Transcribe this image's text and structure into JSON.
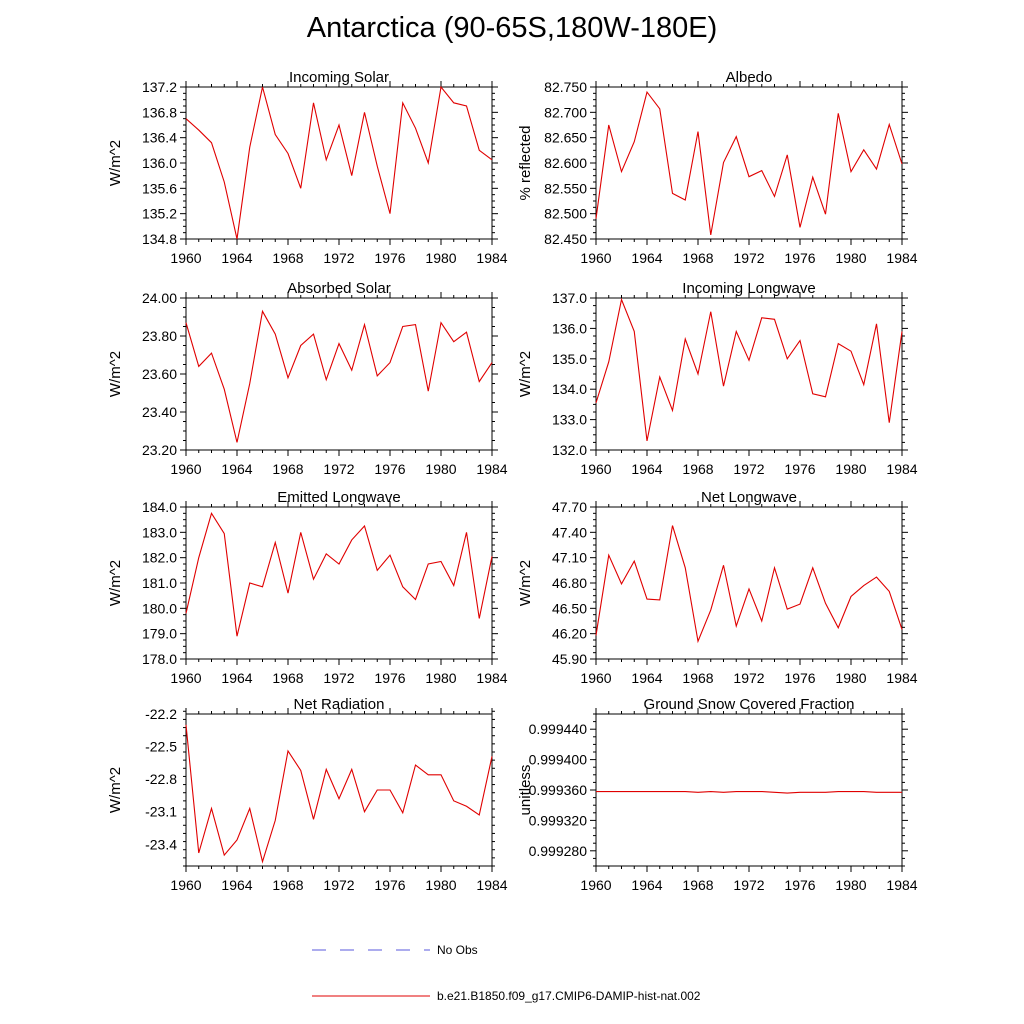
{
  "figure": {
    "title": "Antarctica (90-65S,180W-180E)"
  },
  "legend": {
    "entries": [
      {
        "label": "No Obs",
        "color": "#5a5adc",
        "style": "dashed"
      },
      {
        "label": "b.e21.B1850.f09_g17.CMIP6-DAMIP-hist-nat.002",
        "color": "#e00000",
        "style": "solid"
      }
    ]
  },
  "chart_data": [
    {
      "type": "line",
      "title": "Incoming Solar",
      "ylabel": "W/m^2",
      "xlim": [
        1960,
        1984
      ],
      "ylim": [
        134.8,
        137.2
      ],
      "yticks": [
        "134.8",
        "135.2",
        "135.6",
        "136.0",
        "136.4",
        "136.8",
        "137.2"
      ],
      "xticks": [
        "1960",
        "1964",
        "1968",
        "1972",
        "1976",
        "1980",
        "1984"
      ],
      "x": [
        1960,
        1961,
        1962,
        1963,
        1964,
        1965,
        1966,
        1967,
        1968,
        1969,
        1970,
        1971,
        1972,
        1973,
        1974,
        1975,
        1976,
        1977,
        1978,
        1979,
        1980,
        1981,
        1982,
        1983,
        1984
      ],
      "series": [
        {
          "name": "b.e21.B1850.f09_g17.CMIP6-DAMIP-hist-nat.002",
          "color": "#e00000",
          "values": [
            136.7,
            136.52,
            136.32,
            135.7,
            134.8,
            136.25,
            137.2,
            136.45,
            136.15,
            135.6,
            136.95,
            136.05,
            136.6,
            135.8,
            136.8,
            135.95,
            135.2,
            136.95,
            136.55,
            136.0,
            137.2,
            136.95,
            136.9,
            136.2,
            136.05
          ]
        }
      ]
    },
    {
      "type": "line",
      "title": "Albedo",
      "ylabel": "% reflected",
      "xlim": [
        1960,
        1984
      ],
      "ylim": [
        82.45,
        82.75
      ],
      "yticks": [
        "82.450",
        "82.500",
        "82.550",
        "82.600",
        "82.650",
        "82.700",
        "82.750"
      ],
      "xticks": [
        "1960",
        "1964",
        "1968",
        "1972",
        "1976",
        "1980",
        "1984"
      ],
      "x": [
        1960,
        1961,
        1962,
        1963,
        1964,
        1965,
        1966,
        1967,
        1968,
        1969,
        1970,
        1971,
        1972,
        1973,
        1974,
        1975,
        1976,
        1977,
        1978,
        1979,
        1980,
        1981,
        1982,
        1983,
        1984
      ],
      "series": [
        {
          "name": "b.e21.B1850.f09_g17.CMIP6-DAMIP-hist-nat.002",
          "color": "#e00000",
          "values": [
            82.49,
            82.675,
            82.583,
            82.642,
            82.74,
            82.707,
            82.54,
            82.527,
            82.662,
            82.458,
            82.601,
            82.652,
            82.573,
            82.585,
            82.534,
            82.616,
            82.473,
            82.572,
            82.499,
            82.698,
            82.583,
            82.626,
            82.588,
            82.676,
            82.598
          ]
        }
      ]
    },
    {
      "type": "line",
      "title": "Absorbed Solar",
      "ylabel": "W/m^2",
      "xlim": [
        1960,
        1984
      ],
      "ylim": [
        23.2,
        24.0
      ],
      "yticks": [
        "23.20",
        "23.40",
        "23.60",
        "23.80",
        "24.00"
      ],
      "xticks": [
        "1960",
        "1964",
        "1968",
        "1972",
        "1976",
        "1980",
        "1984"
      ],
      "x": [
        1960,
        1961,
        1962,
        1963,
        1964,
        1965,
        1966,
        1967,
        1968,
        1969,
        1970,
        1971,
        1972,
        1973,
        1974,
        1975,
        1976,
        1977,
        1978,
        1979,
        1980,
        1981,
        1982,
        1983,
        1984
      ],
      "series": [
        {
          "name": "b.e21.B1850.f09_g17.CMIP6-DAMIP-hist-nat.002",
          "color": "#e00000",
          "values": [
            23.87,
            23.64,
            23.71,
            23.52,
            23.24,
            23.55,
            23.93,
            23.81,
            23.58,
            23.75,
            23.81,
            23.57,
            23.76,
            23.62,
            23.86,
            23.59,
            23.66,
            23.85,
            23.86,
            23.51,
            23.87,
            23.77,
            23.82,
            23.56,
            23.66
          ]
        }
      ]
    },
    {
      "type": "line",
      "title": "Incoming Longwave",
      "ylabel": "W/m^2",
      "xlim": [
        1960,
        1984
      ],
      "ylim": [
        132.0,
        137.0
      ],
      "yticks": [
        "132.0",
        "133.0",
        "134.0",
        "135.0",
        "136.0",
        "137.0"
      ],
      "xticks": [
        "1960",
        "1964",
        "1968",
        "1972",
        "1976",
        "1980",
        "1984"
      ],
      "x": [
        1960,
        1961,
        1962,
        1963,
        1964,
        1965,
        1966,
        1967,
        1968,
        1969,
        1970,
        1971,
        1972,
        1973,
        1974,
        1975,
        1976,
        1977,
        1978,
        1979,
        1980,
        1981,
        1982,
        1983,
        1984
      ],
      "series": [
        {
          "name": "b.e21.B1850.f09_g17.CMIP6-DAMIP-hist-nat.002",
          "color": "#e00000",
          "values": [
            133.55,
            134.9,
            136.95,
            135.9,
            132.3,
            134.4,
            133.3,
            135.65,
            134.5,
            136.55,
            134.1,
            135.9,
            134.95,
            136.35,
            136.3,
            135.0,
            135.6,
            133.85,
            133.75,
            135.5,
            135.25,
            134.15,
            136.15,
            132.9,
            135.9
          ]
        }
      ]
    },
    {
      "type": "line",
      "title": "Emitted Longwave",
      "ylabel": "W/m^2",
      "xlim": [
        1960,
        1984
      ],
      "ylim": [
        178.0,
        184.0
      ],
      "yticks": [
        "178.0",
        "179.0",
        "180.0",
        "181.0",
        "182.0",
        "183.0",
        "184.0"
      ],
      "xticks": [
        "1960",
        "1964",
        "1968",
        "1972",
        "1976",
        "1980",
        "1984"
      ],
      "x": [
        1960,
        1961,
        1962,
        1963,
        1964,
        1965,
        1966,
        1967,
        1968,
        1969,
        1970,
        1971,
        1972,
        1973,
        1974,
        1975,
        1976,
        1977,
        1978,
        1979,
        1980,
        1981,
        1982,
        1983,
        1984
      ],
      "series": [
        {
          "name": "b.e21.B1850.f09_g17.CMIP6-DAMIP-hist-nat.002",
          "color": "#e00000",
          "values": [
            179.8,
            182.0,
            183.75,
            182.95,
            178.9,
            181.0,
            180.85,
            182.6,
            180.6,
            183.0,
            181.15,
            182.15,
            181.75,
            182.7,
            183.25,
            181.5,
            182.1,
            180.85,
            180.35,
            181.75,
            181.85,
            180.9,
            183.0,
            179.6,
            182.05
          ]
        }
      ]
    },
    {
      "type": "line",
      "title": "Net Longwave",
      "ylabel": "W/m^2",
      "xlim": [
        1960,
        1984
      ],
      "ylim": [
        45.9,
        47.7
      ],
      "yticks": [
        "45.90",
        "46.20",
        "46.50",
        "46.80",
        "47.10",
        "47.40",
        "47.70"
      ],
      "xticks": [
        "1960",
        "1964",
        "1968",
        "1972",
        "1976",
        "1980",
        "1984"
      ],
      "x": [
        1960,
        1961,
        1962,
        1963,
        1964,
        1965,
        1966,
        1967,
        1968,
        1969,
        1970,
        1971,
        1972,
        1973,
        1974,
        1975,
        1976,
        1977,
        1978,
        1979,
        1980,
        1981,
        1982,
        1983,
        1984
      ],
      "series": [
        {
          "name": "b.e21.B1850.f09_g17.CMIP6-DAMIP-hist-nat.002",
          "color": "#e00000",
          "values": [
            46.18,
            47.13,
            46.79,
            47.06,
            46.61,
            46.6,
            47.48,
            46.98,
            46.11,
            46.48,
            47.01,
            46.29,
            46.73,
            46.35,
            46.98,
            46.49,
            46.55,
            46.98,
            46.56,
            46.27,
            46.64,
            46.77,
            46.87,
            46.7,
            46.25
          ]
        }
      ]
    },
    {
      "type": "line",
      "title": "Net Radiation",
      "ylabel": "W/m^2",
      "xlim": [
        1960,
        1984
      ],
      "ylim": [
        -23.6,
        -22.2
      ],
      "yticks": [
        "-23.4",
        "-23.1",
        "-22.8",
        "-22.5",
        "-22.2"
      ],
      "xticks": [
        "1960",
        "1964",
        "1968",
        "1972",
        "1976",
        "1980",
        "1984"
      ],
      "x": [
        1960,
        1961,
        1962,
        1963,
        1964,
        1965,
        1966,
        1967,
        1968,
        1969,
        1970,
        1971,
        1972,
        1973,
        1974,
        1975,
        1976,
        1977,
        1978,
        1979,
        1980,
        1981,
        1982,
        1983,
        1984
      ],
      "series": [
        {
          "name": "b.e21.B1850.f09_g17.CMIP6-DAMIP-hist-nat.002",
          "color": "#e00000",
          "values": [
            -22.3,
            -23.48,
            -23.07,
            -23.5,
            -23.36,
            -23.07,
            -23.56,
            -23.18,
            -22.54,
            -22.72,
            -23.17,
            -22.71,
            -22.98,
            -22.71,
            -23.1,
            -22.9,
            -22.9,
            -23.11,
            -22.67,
            -22.76,
            -22.76,
            -23.0,
            -23.05,
            -23.13,
            -22.59
          ]
        }
      ]
    },
    {
      "type": "line",
      "title": "Ground Snow Covered Fraction",
      "ylabel": "unitless",
      "xlim": [
        1960,
        1984
      ],
      "ylim": [
        0.99926,
        0.99946
      ],
      "yticks": [
        "0.999280",
        "0.999320",
        "0.999360",
        "0.999400",
        "0.999440"
      ],
      "xticks": [
        "1960",
        "1964",
        "1968",
        "1972",
        "1976",
        "1980",
        "1984"
      ],
      "x": [
        1960,
        1961,
        1962,
        1963,
        1964,
        1965,
        1966,
        1967,
        1968,
        1969,
        1970,
        1971,
        1972,
        1973,
        1974,
        1975,
        1976,
        1977,
        1978,
        1979,
        1980,
        1981,
        1982,
        1983,
        1984
      ],
      "series": [
        {
          "name": "b.e21.B1850.f09_g17.CMIP6-DAMIP-hist-nat.002",
          "color": "#e00000",
          "values": [
            0.999358,
            0.999358,
            0.999358,
            0.999358,
            0.999358,
            0.999358,
            0.999358,
            0.999358,
            0.999357,
            0.999358,
            0.999357,
            0.999358,
            0.999358,
            0.999358,
            0.999357,
            0.999356,
            0.999357,
            0.999357,
            0.999357,
            0.999358,
            0.999358,
            0.999358,
            0.999357,
            0.999357,
            0.999357
          ]
        }
      ]
    }
  ]
}
